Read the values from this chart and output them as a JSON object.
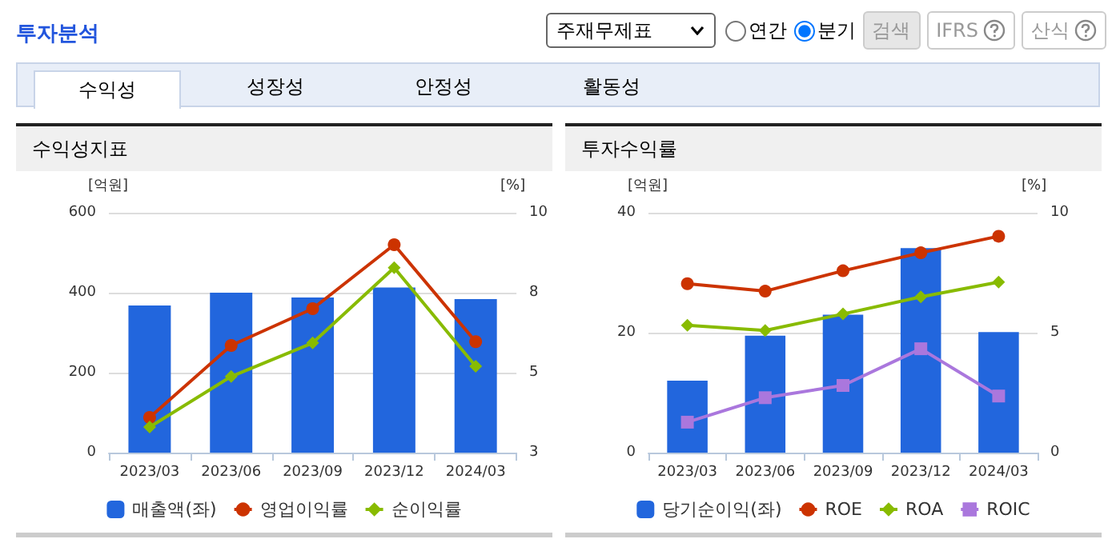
{
  "chart_data": [
    {
      "type": "other",
      "title": "투자분석",
      "annotations": [
        "주재무제표",
        "연간",
        "분기",
        "검색",
        "IFRS",
        "산식",
        "수익성",
        "성장성",
        "안정성",
        "활동성"
      ]
    },
    {
      "type": "bar",
      "title": "수익성지표",
      "ylabel": "[억원]",
      "y2label": "[%]",
      "categories": [
        "2023/03",
        "2023/06",
        "2023/09",
        "2023/12",
        "2024/03"
      ],
      "series": [
        {
          "name": "매출액(좌)",
          "color": "#2266dd",
          "values": [
            368,
            400,
            388,
            413,
            384
          ]
        },
        {
          "name": "영업이익률",
          "type": "line",
          "axis": "y2",
          "marker": "circle",
          "color": "#cc3300",
          "values": [
            3.6,
            5.85,
            7.0,
            9.0,
            5.97
          ]
        },
        {
          "name": "순이익률",
          "type": "line",
          "axis": "y2",
          "marker": "diamond",
          "color": "#88bb00",
          "values": [
            3.3,
            4.88,
            5.93,
            8.28,
            5.2
          ]
        }
      ],
      "ylim": [
        0,
        600
      ],
      "yticks": [
        0,
        200,
        400,
        600
      ],
      "y2lim": [
        2.5,
        10
      ],
      "y2ticks": [
        {
          "value": 2.5,
          "label": "3"
        },
        5,
        {
          "value": 7.5,
          "label": "8"
        },
        10
      ],
      "grid": "y",
      "legend": "bottom"
    },
    {
      "type": "bar",
      "title": "투자수익률",
      "ylabel": "[억원]",
      "y2label": "[%]",
      "categories": [
        "2023/03",
        "2023/06",
        "2023/09",
        "2023/12",
        "2024/03"
      ],
      "series": [
        {
          "name": "당기순이익(좌)",
          "color": "#2266dd",
          "values": [
            12.0,
            19.5,
            23.0,
            34.1,
            20.1
          ]
        },
        {
          "name": "ROE",
          "type": "line",
          "axis": "y2",
          "marker": "circle",
          "color": "#cc3300",
          "values": [
            7.04,
            6.73,
            7.58,
            8.33,
            9.02
          ]
        },
        {
          "name": "ROA",
          "type": "line",
          "axis": "y2",
          "marker": "diamond",
          "color": "#88bb00",
          "values": [
            5.31,
            5.09,
            5.78,
            6.49,
            7.11
          ]
        },
        {
          "name": "ROIC",
          "type": "line",
          "axis": "y2",
          "marker": "square",
          "color": "#aa77dd",
          "values": [
            1.27,
            2.29,
            2.8,
            4.33,
            2.36
          ]
        }
      ],
      "ylim": [
        0,
        40
      ],
      "yticks": [
        0,
        20,
        40
      ],
      "y2lim": [
        0,
        10
      ],
      "y2ticks": [
        0,
        5,
        10
      ],
      "grid": "y",
      "legend": "bottom"
    }
  ]
}
